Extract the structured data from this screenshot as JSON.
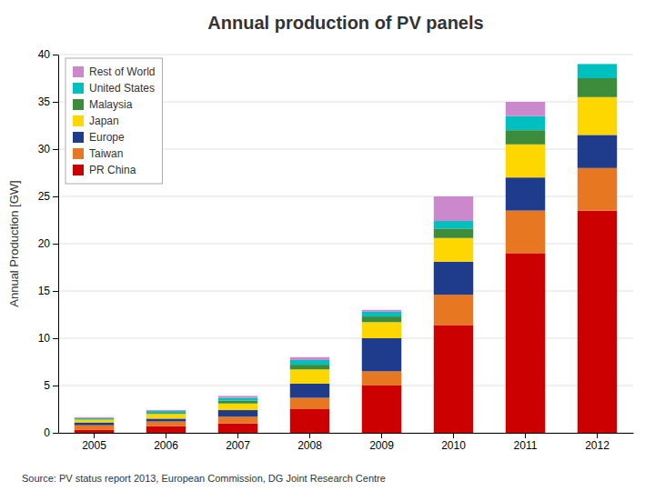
{
  "chart_data": {
    "type": "bar",
    "stacked": true,
    "title": "Annual production of PV panels",
    "ylabel": "Annual Production [GW]",
    "annotations": [
      "Source: PV status report 2013, European Commission, DG Joint Research Centre"
    ],
    "categories": [
      "2005",
      "2006",
      "2007",
      "2008",
      "2009",
      "2010",
      "2011",
      "2012"
    ],
    "series": [
      {
        "name": "PR China",
        "color": "#CC0000",
        "values": [
          0.3,
          0.7,
          1.0,
          2.5,
          5.0,
          11.4,
          19.0,
          23.5
        ]
      },
      {
        "name": "Taiwan",
        "color": "#E87722",
        "values": [
          0.5,
          0.5,
          0.7,
          1.2,
          1.5,
          3.2,
          4.5,
          4.5
        ]
      },
      {
        "name": "Europe",
        "color": "#1F3B8C",
        "values": [
          0.3,
          0.3,
          0.7,
          1.5,
          3.5,
          3.5,
          3.5,
          3.5
        ]
      },
      {
        "name": "Japan",
        "color": "#FFD700",
        "values": [
          0.3,
          0.5,
          0.7,
          1.5,
          1.7,
          2.5,
          3.5,
          4.0
        ]
      },
      {
        "name": "Malaysia",
        "color": "#3C8C3C",
        "values": [
          0.05,
          0.1,
          0.3,
          0.5,
          0.6,
          1.0,
          1.5,
          2.0
        ]
      },
      {
        "name": "United States",
        "color": "#00BFBF",
        "values": [
          0.1,
          0.2,
          0.3,
          0.5,
          0.5,
          0.8,
          1.5,
          1.5
        ]
      },
      {
        "name": "Rest of World",
        "color": "#CC88CC",
        "values": [
          0.1,
          0.1,
          0.2,
          0.3,
          0.2,
          2.6,
          1.5,
          0.0
        ]
      }
    ],
    "ylim": [
      0,
      40
    ],
    "yticks": [
      0,
      5,
      10,
      15,
      20,
      25,
      30,
      35,
      40
    ],
    "grid": true,
    "legend": "upper left"
  }
}
